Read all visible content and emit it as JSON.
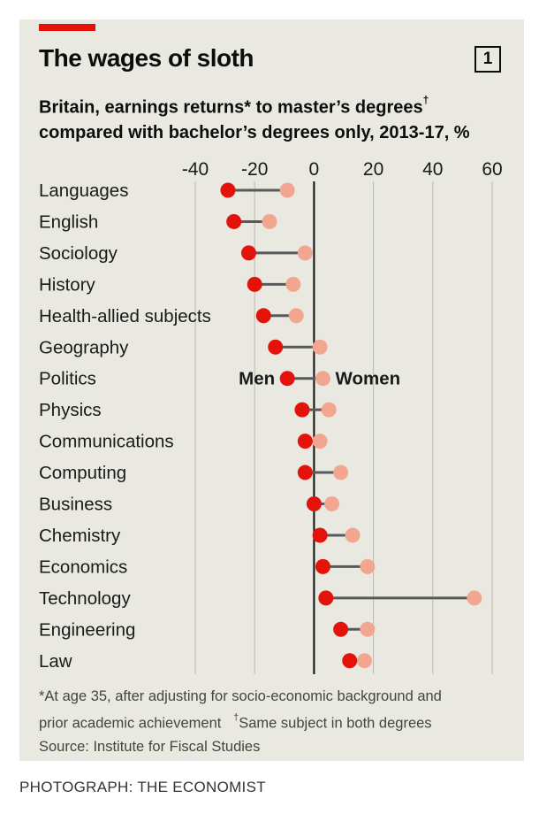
{
  "header": {
    "title": "The wages of sloth",
    "badge": "1",
    "subtitle_line1": "Britain, earnings returns* to master’s degrees",
    "subtitle_mark1": "†",
    "subtitle_line2": "compared with bachelor’s degrees only, 2013-17, %"
  },
  "colors": {
    "men": "#e3120b",
    "women": "#f3a68f",
    "connector": "#595959",
    "grid": "#b9b9b3",
    "zero": "#0d0d0d"
  },
  "chart_data": {
    "type": "dumbbell",
    "xlim": [
      -40,
      60
    ],
    "ticks": [
      -40,
      -20,
      0,
      20,
      40,
      60
    ],
    "tick_labels": [
      "-40",
      "-20",
      "0",
      "20",
      "40",
      "60"
    ],
    "categories": [
      "Languages",
      "English",
      "Sociology",
      "History",
      "Health-allied subjects",
      "Geography",
      "Politics",
      "Physics",
      "Communications",
      "Computing",
      "Business",
      "Chemistry",
      "Economics",
      "Technology",
      "Engineering",
      "Law"
    ],
    "series": [
      {
        "name": "Men",
        "values": [
          -29,
          -27,
          -22,
          -20,
          -17,
          -13,
          -9,
          -4,
          -3,
          -3,
          0,
          2,
          3,
          4,
          9,
          12
        ]
      },
      {
        "name": "Women",
        "values": [
          -9,
          -15,
          -3,
          -7,
          -6,
          2,
          3,
          5,
          2,
          9,
          6,
          13,
          18,
          54,
          18,
          17
        ]
      }
    ],
    "annotations": {
      "men": "Men",
      "women": "Women",
      "row": "Politics"
    }
  },
  "footer": {
    "note1": "*At age 35, after adjusting for socio-economic background and",
    "note2a": "prior academic achievement",
    "note2_mark": "†",
    "note2b": "Same subject in both degrees",
    "source": "Source: Institute for Fiscal Studies"
  },
  "credit": "PHOTOGRAPH: THE ECONOMIST"
}
